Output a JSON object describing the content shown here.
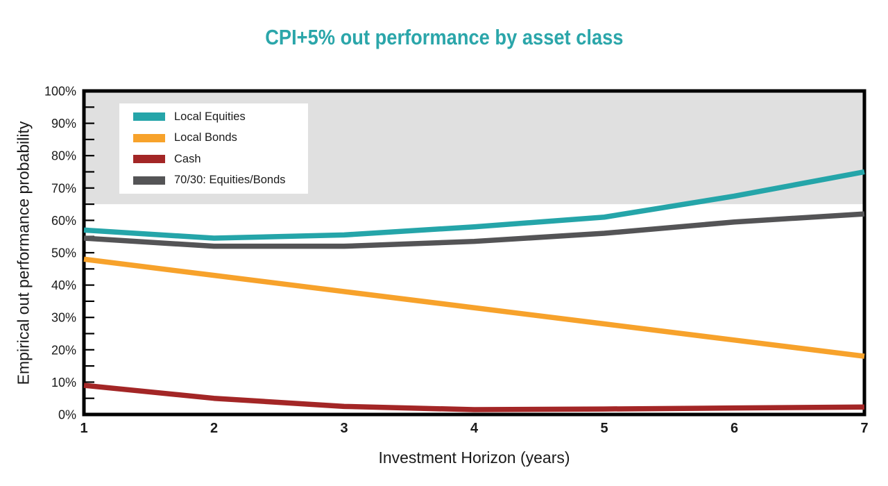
{
  "chart_data": {
    "type": "line",
    "title": "CPI+5% out performance by asset class",
    "xlabel": "Investment Horizon (years)",
    "ylabel": "Empirical out performance probability",
    "x": [
      1,
      2,
      3,
      4,
      5,
      6,
      7
    ],
    "xlim": [
      1,
      7
    ],
    "ylim": [
      0,
      100
    ],
    "y_tick_major": 10,
    "y_tick_minor": 5,
    "y_tick_suffix": "%",
    "grid": false,
    "legend_position": "top-left",
    "shaded_band": {
      "from": 65,
      "to": 100,
      "color": "#e0e0e0"
    },
    "series": [
      {
        "name": "Local Equities",
        "color": "#25a5a9",
        "values": [
          57,
          54.5,
          55.5,
          58,
          61,
          67.5,
          75
        ]
      },
      {
        "name": "Local Bonds",
        "color": "#f7a22b",
        "values": [
          48,
          43,
          38,
          33,
          28,
          23,
          18
        ]
      },
      {
        "name": "Cash",
        "color": "#a32626",
        "values": [
          9,
          5,
          2.5,
          1.5,
          1.7,
          2,
          2.3
        ]
      },
      {
        "name": "70/30: Equities/Bonds",
        "color": "#545456",
        "values": [
          54.5,
          52,
          52,
          53.5,
          56,
          59.5,
          62
        ]
      }
    ]
  },
  "colors": {
    "title": "#2ba6aa",
    "axis": "#000000",
    "tick_label": "#1a1a1a"
  }
}
